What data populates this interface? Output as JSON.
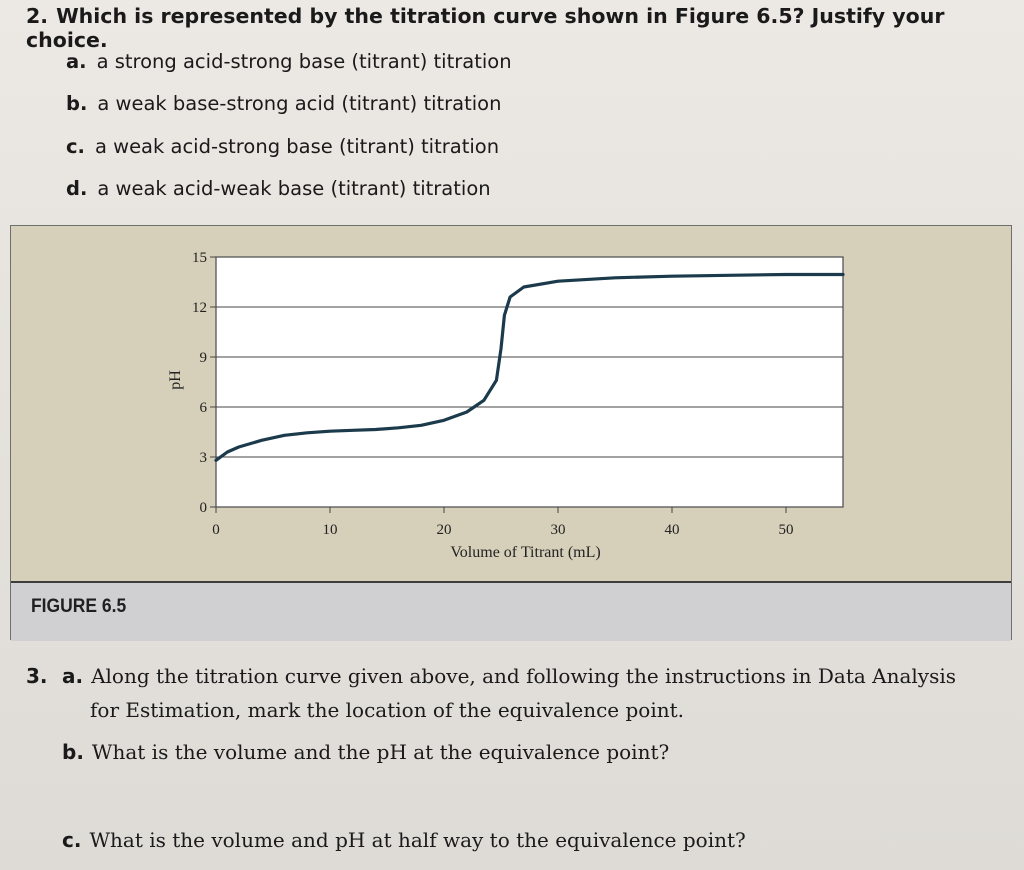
{
  "question2": {
    "number": "2.",
    "text": "Which is represented by the titration curve shown in Figure 6.5? Justify your choice.",
    "choices": [
      {
        "letter": "a.",
        "text": "a strong acid-strong base (titrant) titration"
      },
      {
        "letter": "b.",
        "text": "a weak base-strong acid (titrant) titration"
      },
      {
        "letter": "c.",
        "text": "a weak acid-strong base (titrant) titration"
      },
      {
        "letter": "d.",
        "text": "a weak acid-weak base (titrant) titration"
      }
    ]
  },
  "figure": {
    "label": "FIGURE 6.5"
  },
  "chart_data": {
    "type": "line",
    "title": "",
    "xlabel": "Volume of Titrant (mL)",
    "ylabel": "pH",
    "xlim": [
      0,
      55
    ],
    "ylim": [
      0,
      15
    ],
    "xticks": [
      0,
      10,
      20,
      30,
      40,
      50
    ],
    "yticks": [
      0,
      3,
      6,
      9,
      12,
      15
    ],
    "grid": "horizontal",
    "series": [
      {
        "color": "#1b3a4b",
        "points": [
          [
            0,
            2.8
          ],
          [
            1,
            3.3
          ],
          [
            2,
            3.6
          ],
          [
            4,
            4.0
          ],
          [
            6,
            4.3
          ],
          [
            8,
            4.45
          ],
          [
            10,
            4.55
          ],
          [
            12,
            4.6
          ],
          [
            14,
            4.65
          ],
          [
            16,
            4.75
          ],
          [
            18,
            4.9
          ],
          [
            20,
            5.2
          ],
          [
            22,
            5.7
          ],
          [
            23.5,
            6.4
          ],
          [
            24.6,
            7.6
          ],
          [
            25,
            9.5
          ],
          [
            25.3,
            11.5
          ],
          [
            25.8,
            12.6
          ],
          [
            27,
            13.2
          ],
          [
            30,
            13.55
          ],
          [
            35,
            13.75
          ],
          [
            40,
            13.85
          ],
          [
            45,
            13.9
          ],
          [
            50,
            13.95
          ],
          [
            55,
            13.95
          ]
        ]
      }
    ]
  },
  "question3": {
    "number": "3.",
    "parts": [
      {
        "letter": "a.",
        "lines": [
          "Along the titration curve given above, and following the instructions in Data Analysis",
          "for Estimation, mark the location of the equivalence point."
        ]
      },
      {
        "letter": "b.",
        "lines": [
          "What is the volume and the pH at the equivalence point?"
        ]
      },
      {
        "letter": "c.",
        "lines": [
          "What is the volume and pH at half way to the equivalence point?"
        ]
      }
    ]
  }
}
